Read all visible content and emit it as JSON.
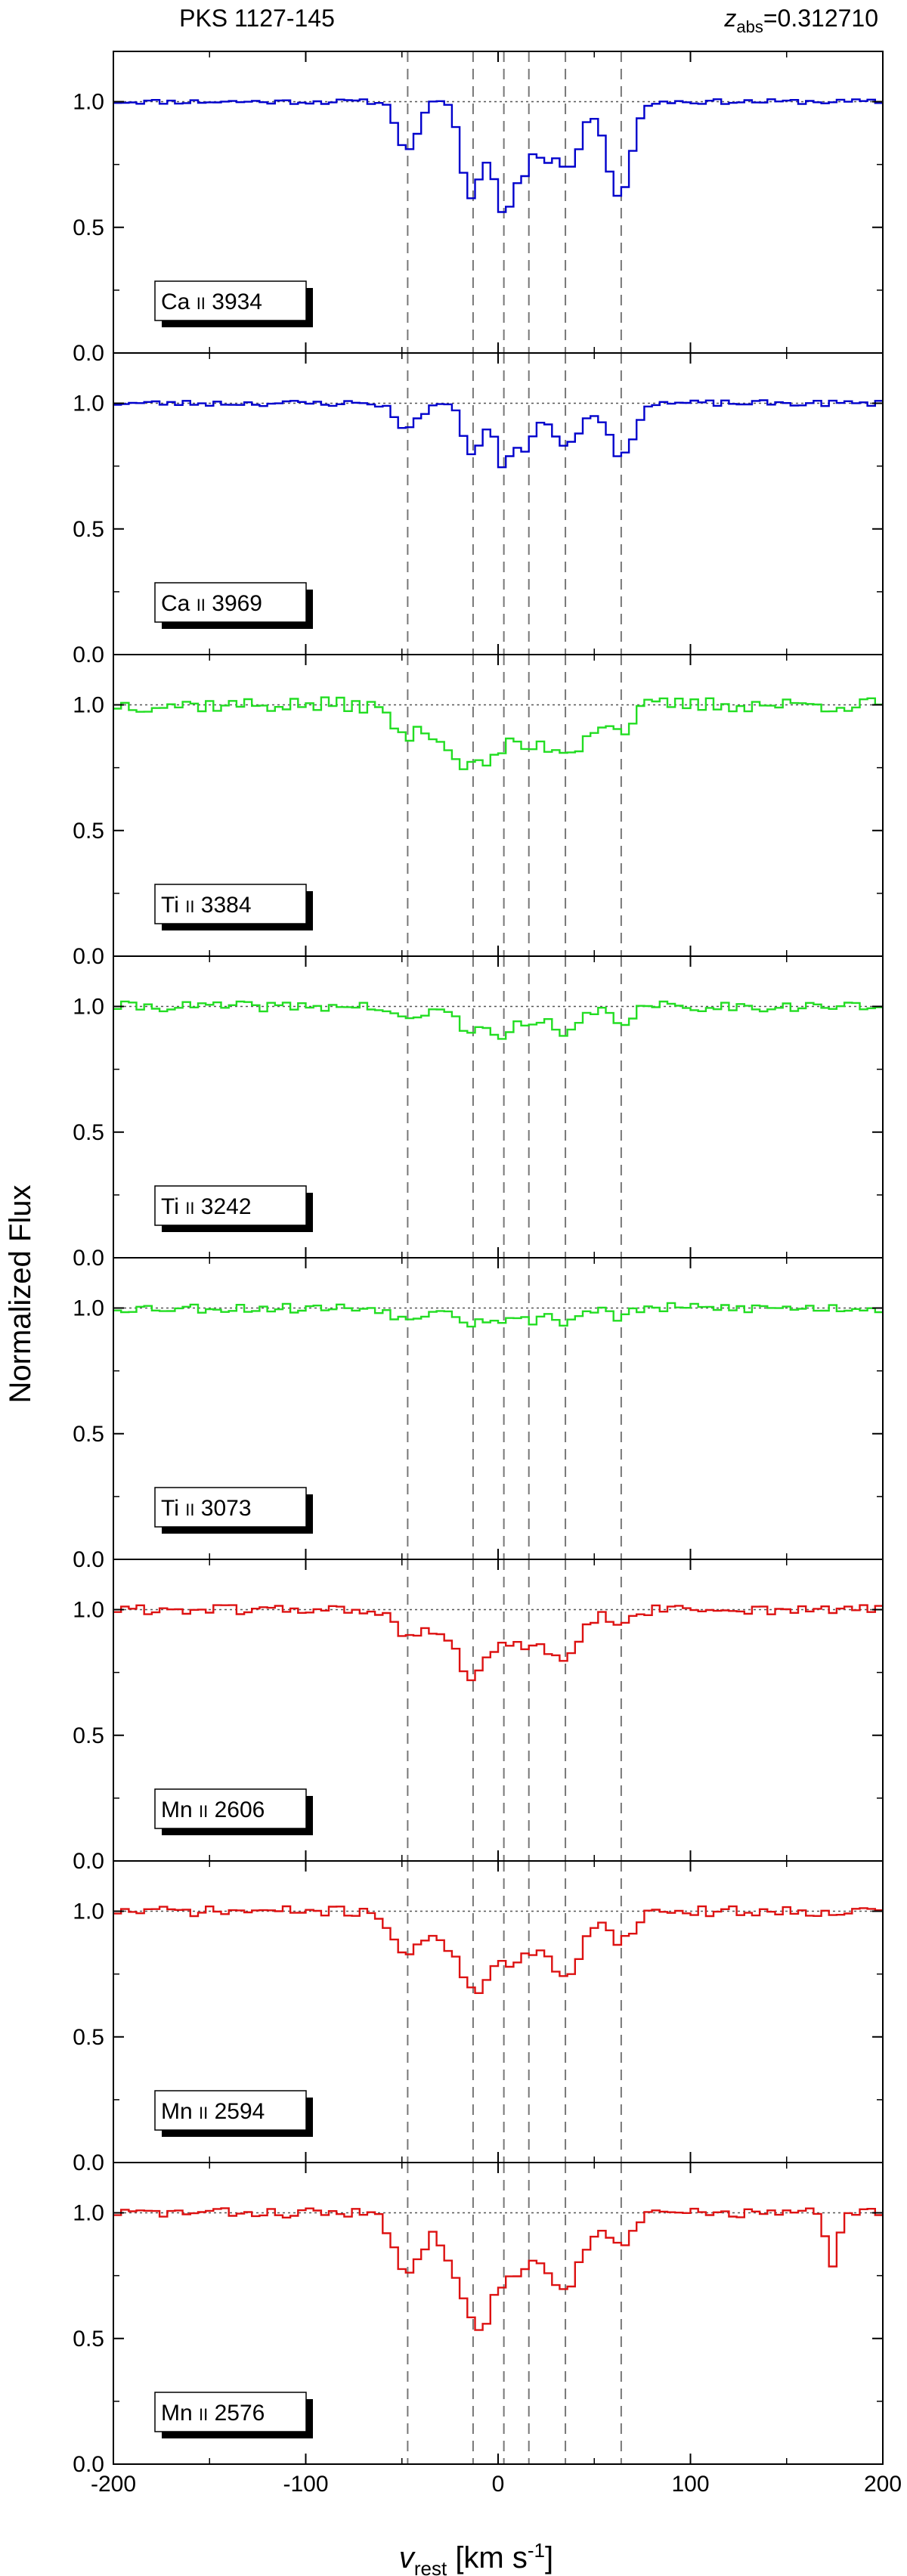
{
  "title_left": "PKS 1127-145",
  "title_right": {
    "var": "z",
    "sub": "abs",
    "value": "=0.312710"
  },
  "ylabel": "Normalized Flux",
  "xlabel": {
    "var": "v",
    "sub": "rest",
    "unit_pre": " [km s",
    "unit_sup": "-1",
    "unit_post": "]"
  },
  "colors": {
    "ca": "#0000cc",
    "ti": "#22dd22",
    "mn": "#dd1111",
    "axis": "#000000",
    "guide": "#777777"
  },
  "chart_data": {
    "type": "line",
    "xlim": [
      -200,
      200
    ],
    "ylim": [
      0,
      1.2
    ],
    "x_ticks": [
      -200,
      -100,
      0,
      100,
      200
    ],
    "x_tick_labels": [
      "-200",
      "-100",
      "0",
      "100",
      "200"
    ],
    "y_ticks": [
      0,
      0.5,
      1
    ],
    "y_tick_labels": [
      "0.0",
      "0.5",
      "1.0"
    ],
    "continuum": 1.0,
    "component_velocities": [
      -47,
      -13,
      3,
      16,
      35,
      64
    ],
    "step": 4,
    "panels": [
      {
        "ion": "Ca",
        "ionization": "II",
        "wave": "3934",
        "color_key": "ca",
        "profile": {
          "baseline": 1.0,
          "noise": 0.01,
          "seed": 11,
          "components": [
            [
              -47,
              0.2,
              5
            ],
            [
              -14,
              0.38,
              5
            ],
            [
              -3,
              0.16,
              4
            ],
            [
              4,
              0.4,
              4
            ],
            [
              13,
              0.25,
              4
            ],
            [
              24,
              0.2,
              5
            ],
            [
              37,
              0.26,
              6
            ],
            [
              63,
              0.38,
              6
            ]
          ],
          "extra": []
        }
      },
      {
        "ion": "Ca",
        "ionization": "II",
        "wave": "3969",
        "color_key": "ca",
        "profile": {
          "baseline": 1.0,
          "noise": 0.012,
          "seed": 23,
          "components": [
            [
              -47,
              0.1,
              6
            ],
            [
              -13,
              0.2,
              5
            ],
            [
              3,
              0.26,
              4
            ],
            [
              14,
              0.18,
              4
            ],
            [
              35,
              0.16,
              8
            ],
            [
              64,
              0.22,
              6
            ]
          ],
          "extra": []
        }
      },
      {
        "ion": "Ti",
        "ionization": "II",
        "wave": "3384",
        "color_key": "ti",
        "profile": {
          "baseline": 1.0,
          "noise": 0.03,
          "seed": 37,
          "components": [
            [
              -47,
              0.12,
              8
            ],
            [
              -20,
              0.2,
              10
            ],
            [
              -5,
              0.14,
              8
            ],
            [
              15,
              0.15,
              10
            ],
            [
              38,
              0.17,
              10
            ],
            [
              64,
              0.1,
              6
            ]
          ],
          "extra": []
        }
      },
      {
        "ion": "Ti",
        "ionization": "II",
        "wave": "3242",
        "color_key": "ti",
        "profile": {
          "baseline": 1.0,
          "noise": 0.02,
          "seed": 41,
          "components": [
            [
              -47,
              0.06,
              7
            ],
            [
              -13,
              0.1,
              8
            ],
            [
              3,
              0.09,
              5
            ],
            [
              16,
              0.07,
              6
            ],
            [
              35,
              0.12,
              7
            ],
            [
              64,
              0.06,
              6
            ]
          ],
          "extra": []
        }
      },
      {
        "ion": "Ti",
        "ionization": "II",
        "wave": "3073",
        "color_key": "ti",
        "profile": {
          "baseline": 1.0,
          "noise": 0.02,
          "seed": 53,
          "components": [
            [
              -47,
              0.05,
              6
            ],
            [
              -13,
              0.06,
              6
            ],
            [
              3,
              0.05,
              5
            ],
            [
              16,
              0.05,
              5
            ],
            [
              35,
              0.06,
              6
            ],
            [
              64,
              0.04,
              5
            ]
          ],
          "extra": []
        }
      },
      {
        "ion": "Mn",
        "ionization": "II",
        "wave": "2606",
        "color_key": "mn",
        "profile": {
          "baseline": 1.0,
          "noise": 0.02,
          "seed": 61,
          "components": [
            [
              -47,
              0.1,
              7
            ],
            [
              -20,
              0.14,
              12
            ],
            [
              -13,
              0.12,
              5
            ],
            [
              10,
              0.14,
              14
            ],
            [
              35,
              0.18,
              8
            ],
            [
              64,
              0.06,
              6
            ]
          ],
          "extra": []
        }
      },
      {
        "ion": "Mn",
        "ionization": "II",
        "wave": "2594",
        "color_key": "mn",
        "profile": {
          "baseline": 1.0,
          "noise": 0.02,
          "seed": 71,
          "components": [
            [
              -47,
              0.18,
              7
            ],
            [
              -18,
              0.2,
              10
            ],
            [
              -10,
              0.1,
              5
            ],
            [
              8,
              0.2,
              12
            ],
            [
              35,
              0.25,
              8
            ],
            [
              64,
              0.12,
              6
            ]
          ],
          "extra": []
        }
      },
      {
        "ion": "Mn",
        "ionization": "II",
        "wave": "2576",
        "color_key": "mn",
        "profile": {
          "baseline": 1.0,
          "noise": 0.02,
          "seed": 83,
          "components": [
            [
              -47,
              0.24,
              7
            ],
            [
              -15,
              0.3,
              10
            ],
            [
              -8,
              0.12,
              5
            ],
            [
              8,
              0.22,
              12
            ],
            [
              35,
              0.28,
              9
            ],
            [
              64,
              0.14,
              6
            ]
          ],
          "extra": [
            [
              174,
              0.22,
              3
            ]
          ]
        }
      }
    ]
  }
}
